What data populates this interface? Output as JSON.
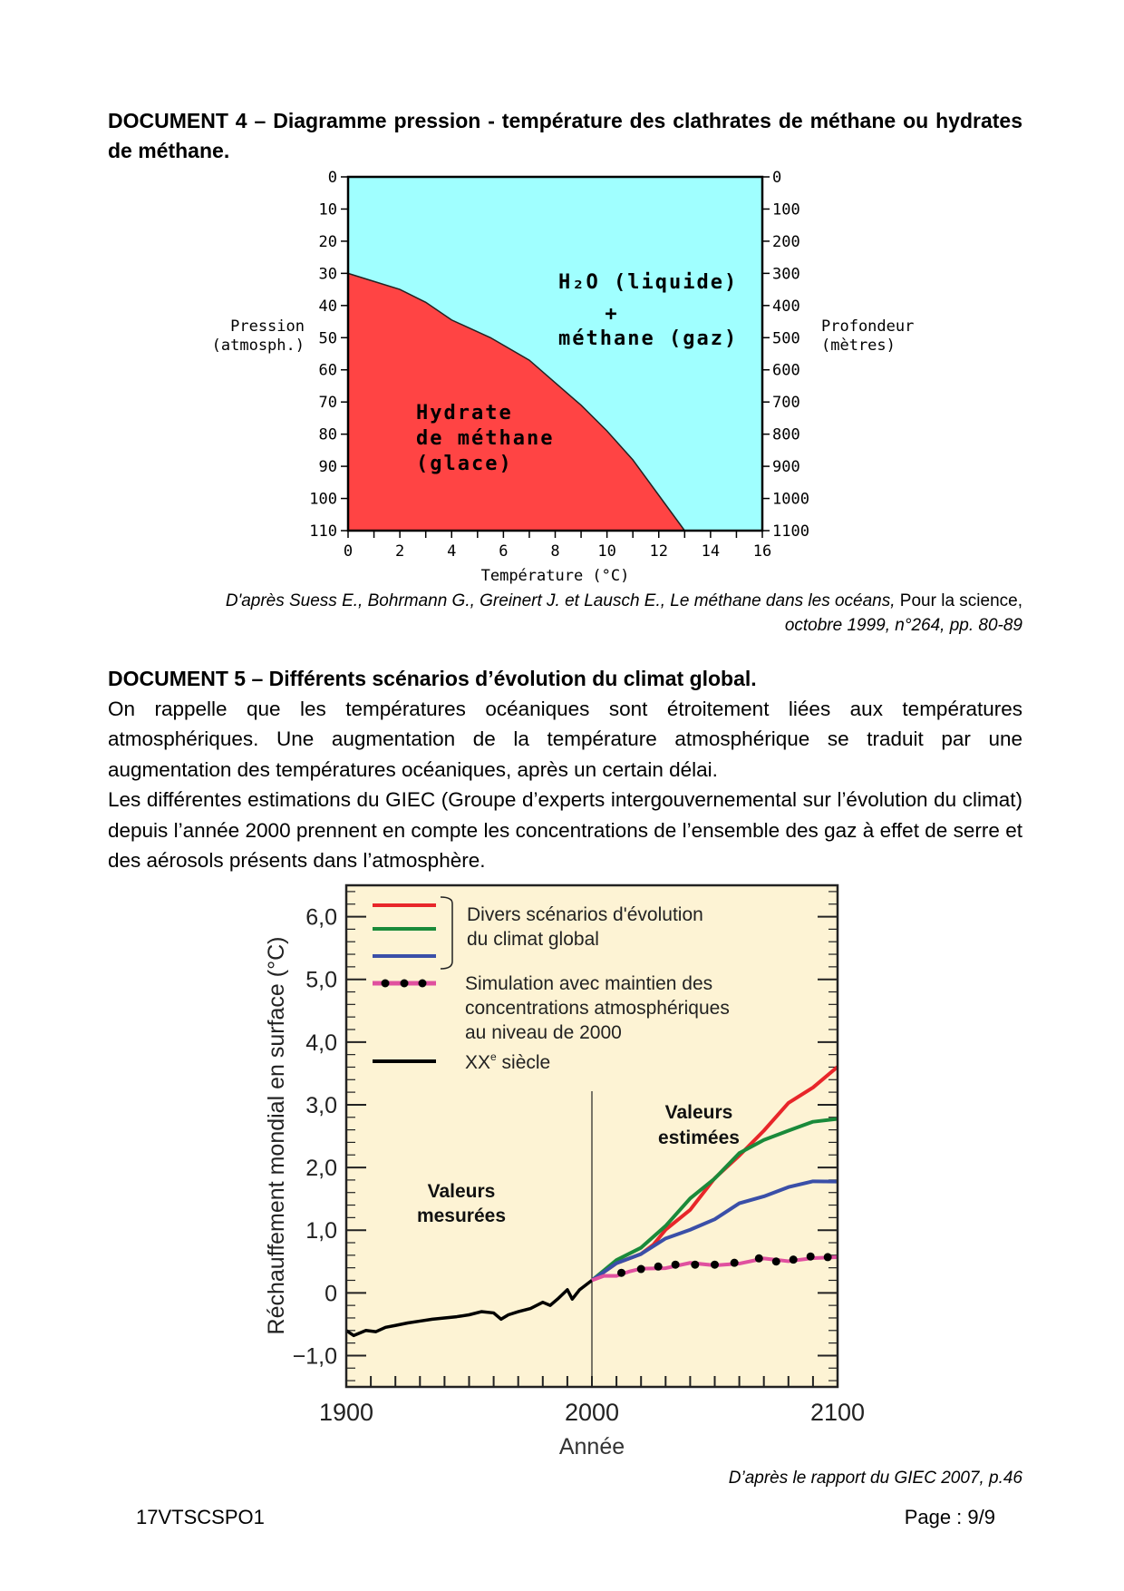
{
  "doc4": {
    "title": "DOCUMENT 4 – Diagramme pression - température des clathrates de méthane ou hydrates de méthane.",
    "citation_line1_italic": "D'après Suess E., Bohrmann G., Greinert J. et Lausch E., Le méthane dans les océans,",
    "citation_line1_normal": " Pour la science,",
    "citation_line2": "octobre 1999, n°264, pp. 80-89"
  },
  "doc5": {
    "title": "DOCUMENT 5 – Différents scénarios d’évolution du climat global.",
    "paragraph1": "On rappelle que les températures océaniques sont étroitement liées aux températures atmosphériques. Une augmentation de la température atmosphérique se traduit par une augmentation des températures océaniques, après un certain délai.",
    "paragraph2": "Les différentes estimations du GIEC (Groupe d’experts intergouvernemental sur l’évolution du climat) depuis l’année 2000 prennent en compte les concentrations de l’ensemble des gaz à effet de serre et des aérosols présents dans l’atmosphère.",
    "citation": "D’après le rapport du GIEC 2007, p.46"
  },
  "footer": {
    "code": "17VTSCSPO1",
    "page": "Page : 9/9"
  },
  "chart_data": [
    {
      "type": "area",
      "xlabel": "Température (°C)",
      "ylabel_line1": "Pression",
      "ylabel_line2": "(atmosph.)",
      "y2label_line1": "Profondeur",
      "y2label_line2": "(mètres)",
      "xlim": [
        0,
        16
      ],
      "ylim": [
        0,
        110
      ],
      "y_inverted": true,
      "y2lim": [
        0,
        1100
      ],
      "xticks": [
        0,
        2,
        4,
        6,
        8,
        10,
        12,
        14,
        16
      ],
      "yticks": [
        0,
        10,
        20,
        30,
        40,
        50,
        60,
        70,
        80,
        90,
        100,
        110
      ],
      "y2ticks": [
        0,
        100,
        200,
        300,
        400,
        500,
        600,
        700,
        800,
        900,
        1000,
        1100
      ],
      "boundary": {
        "x": [
          0,
          1,
          2,
          3,
          4,
          5.5,
          7,
          8,
          9,
          10,
          11,
          12,
          13
        ],
        "y": [
          30,
          32.5,
          35,
          39,
          44.5,
          50,
          57,
          64,
          71,
          79,
          88,
          99,
          110
        ]
      },
      "regions": [
        {
          "label_line1": "H₂O (liquide)",
          "label_line2": "+",
          "label_line3": "méthane (gaz)",
          "color": "#a0ffff"
        },
        {
          "label_line1": "Hydrate",
          "label_line2": "de méthane",
          "label_line3": "(glace)",
          "color": "#ff4444"
        }
      ]
    },
    {
      "type": "line",
      "xlabel": "Année",
      "ylabel": "Réchauffement mondial en surface (°C)",
      "xlim": [
        1900,
        2100
      ],
      "ylim": [
        -1.5,
        6.5
      ],
      "xtick_labels": [
        "1900",
        "2000",
        "2100"
      ],
      "xticks": [
        1900,
        2000,
        2100
      ],
      "yticks": [
        -1,
        0,
        1,
        2,
        3,
        4,
        5,
        6
      ],
      "ytick_labels": [
        "−1,0",
        "0",
        "1,0",
        "2,0",
        "3,0",
        "4,0",
        "5,0",
        "6,0"
      ],
      "background": "#fdf3d4",
      "annotations": {
        "measured_line1": "Valeurs",
        "measured_line2": "mesurées",
        "estimated_line1": "Valeurs",
        "estimated_line2": "estimées"
      },
      "legend": {
        "scenarios_line1": "Divers scénarios d'évolution",
        "scenarios_line2": "du climat global",
        "simulation_line1": "Simulation avec maintien des",
        "simulation_line2": "concentrations atmosphériques",
        "simulation_line3": "au niveau de 2000",
        "century_main": "XX",
        "century_sup": "e",
        "century_rest": " siècle"
      },
      "series": [
        {
          "id": "xx-century",
          "color": "#000000",
          "x": [
            1900,
            1903,
            1908,
            1912,
            1916,
            1920,
            1925,
            1930,
            1935,
            1940,
            1945,
            1950,
            1955,
            1960,
            1963,
            1966,
            1970,
            1975,
            1980,
            1983,
            1986,
            1990,
            1992,
            1995,
            2000
          ],
          "y": [
            -0.6,
            -0.68,
            -0.6,
            -0.62,
            -0.55,
            -0.52,
            -0.48,
            -0.45,
            -0.42,
            -0.4,
            -0.38,
            -0.35,
            -0.3,
            -0.32,
            -0.42,
            -0.35,
            -0.3,
            -0.25,
            -0.15,
            -0.2,
            -0.1,
            0.05,
            -0.1,
            0.05,
            0.2
          ]
        },
        {
          "id": "scenario-red",
          "color": "#e8262a",
          "x": [
            2000,
            2010,
            2020,
            2025,
            2030,
            2040,
            2050,
            2060,
            2070,
            2080,
            2090,
            2100
          ],
          "y": [
            0.2,
            0.45,
            0.65,
            0.75,
            1.0,
            1.35,
            1.8,
            2.2,
            2.6,
            3.0,
            3.3,
            3.6
          ]
        },
        {
          "id": "scenario-green",
          "color": "#1a8a3a",
          "x": [
            2000,
            2010,
            2020,
            2030,
            2040,
            2050,
            2060,
            2070,
            2080,
            2090,
            2100
          ],
          "y": [
            0.2,
            0.5,
            0.75,
            1.05,
            1.5,
            1.85,
            2.2,
            2.45,
            2.6,
            2.7,
            2.8
          ]
        },
        {
          "id": "scenario-blue",
          "color": "#3a4fa8",
          "x": [
            2000,
            2010,
            2020,
            2030,
            2040,
            2050,
            2060,
            2070,
            2080,
            2090,
            2100
          ],
          "y": [
            0.2,
            0.45,
            0.65,
            0.85,
            1.0,
            1.2,
            1.4,
            1.55,
            1.7,
            1.75,
            1.8
          ]
        },
        {
          "id": "simulation-2000",
          "color": "#e0509f",
          "markers": "#000000",
          "x": [
            2000,
            2005,
            2010,
            2015,
            2020,
            2030,
            2040,
            2050,
            2060,
            2070,
            2080,
            2090,
            2100
          ],
          "y": [
            0.2,
            0.25,
            0.3,
            0.32,
            0.38,
            0.42,
            0.45,
            0.45,
            0.48,
            0.52,
            0.53,
            0.55,
            0.55
          ],
          "marker_x": [
            2012,
            2020,
            2027,
            2034,
            2042,
            2050,
            2058,
            2068,
            2075,
            2082,
            2089,
            2096
          ],
          "marker_y": [
            0.32,
            0.38,
            0.42,
            0.45,
            0.45,
            0.45,
            0.48,
            0.55,
            0.5,
            0.53,
            0.58,
            0.57
          ]
        }
      ]
    }
  ]
}
